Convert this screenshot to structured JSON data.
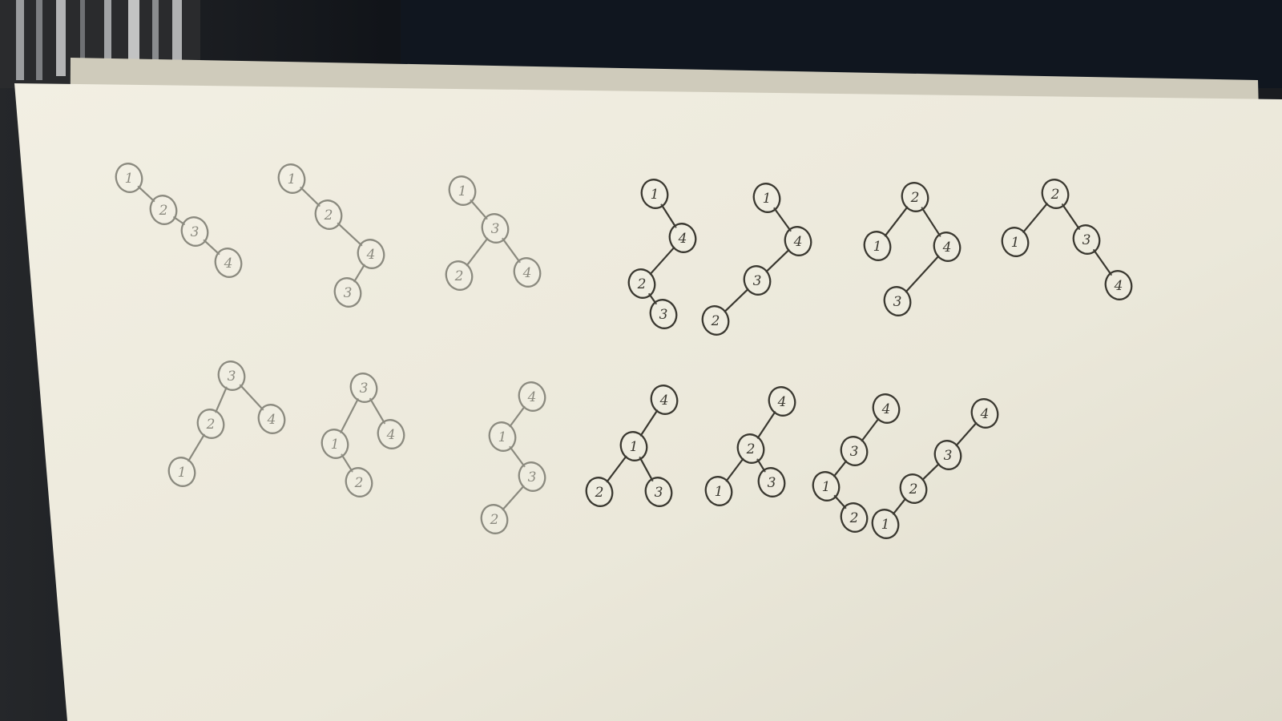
{
  "colors": {
    "background": "#14171c",
    "paper": "#eeeadc",
    "paper_shadow": "#c9c6b6",
    "pencil_light": "#8b8a7f",
    "pencil_dark": "#3a3830"
  },
  "trees": [
    {
      "id": "t1",
      "shade": "light",
      "nodes": [
        [
          "a",
          "1"
        ],
        [
          "b",
          "2"
        ],
        [
          "c",
          "3"
        ],
        [
          "d",
          "4"
        ]
      ],
      "edges": [
        [
          "a",
          "b"
        ],
        [
          "b",
          "c"
        ],
        [
          "c",
          "d"
        ]
      ]
    },
    {
      "id": "t2",
      "shade": "light",
      "nodes": [
        [
          "a",
          "1"
        ],
        [
          "b",
          "2"
        ],
        [
          "c",
          "4"
        ],
        [
          "d",
          "3"
        ]
      ],
      "edges": [
        [
          "a",
          "b"
        ],
        [
          "b",
          "c"
        ],
        [
          "c",
          "d"
        ]
      ]
    },
    {
      "id": "t3",
      "shade": "light",
      "nodes": [
        [
          "a",
          "1"
        ],
        [
          "b",
          "3"
        ],
        [
          "c",
          "2"
        ],
        [
          "d",
          "4"
        ]
      ],
      "edges": [
        [
          "a",
          "b"
        ],
        [
          "b",
          "c"
        ],
        [
          "b",
          "d"
        ]
      ]
    },
    {
      "id": "t4",
      "shade": "dark",
      "nodes": [
        [
          "a",
          "1"
        ],
        [
          "b",
          "4"
        ],
        [
          "c",
          "2"
        ],
        [
          "d",
          "3"
        ]
      ],
      "edges": [
        [
          "a",
          "b"
        ],
        [
          "b",
          "c"
        ],
        [
          "c",
          "d"
        ]
      ]
    },
    {
      "id": "t5",
      "shade": "dark",
      "nodes": [
        [
          "a",
          "1"
        ],
        [
          "b",
          "4"
        ],
        [
          "c",
          "3"
        ],
        [
          "d",
          "2"
        ]
      ],
      "edges": [
        [
          "a",
          "b"
        ],
        [
          "b",
          "c"
        ],
        [
          "c",
          "d"
        ]
      ]
    },
    {
      "id": "t6",
      "shade": "dark",
      "nodes": [
        [
          "a",
          "2"
        ],
        [
          "b",
          "1"
        ],
        [
          "c",
          "4"
        ],
        [
          "d",
          "3"
        ]
      ],
      "edges": [
        [
          "a",
          "b"
        ],
        [
          "a",
          "c"
        ],
        [
          "c",
          "d"
        ]
      ]
    },
    {
      "id": "t7",
      "shade": "dark",
      "nodes": [
        [
          "a",
          "2"
        ],
        [
          "b",
          "1"
        ],
        [
          "c",
          "3"
        ],
        [
          "d",
          "4"
        ]
      ],
      "edges": [
        [
          "a",
          "b"
        ],
        [
          "a",
          "c"
        ],
        [
          "c",
          "d"
        ]
      ]
    },
    {
      "id": "t8",
      "shade": "light",
      "nodes": [
        [
          "a",
          "3"
        ],
        [
          "b",
          "2"
        ],
        [
          "c",
          "4"
        ],
        [
          "d",
          "1"
        ]
      ],
      "edges": [
        [
          "a",
          "b"
        ],
        [
          "a",
          "c"
        ],
        [
          "b",
          "d"
        ]
      ]
    },
    {
      "id": "t9",
      "shade": "light",
      "nodes": [
        [
          "a",
          "3"
        ],
        [
          "b",
          "1"
        ],
        [
          "c",
          "4"
        ],
        [
          "d",
          "2"
        ]
      ],
      "edges": [
        [
          "a",
          "b"
        ],
        [
          "a",
          "c"
        ],
        [
          "b",
          "d"
        ]
      ]
    },
    {
      "id": "t10",
      "shade": "light",
      "nodes": [
        [
          "a",
          "4"
        ],
        [
          "b",
          "1"
        ],
        [
          "c",
          "3"
        ],
        [
          "d",
          "2"
        ]
      ],
      "edges": [
        [
          "a",
          "b"
        ],
        [
          "b",
          "c"
        ],
        [
          "c",
          "d"
        ]
      ]
    },
    {
      "id": "t11",
      "shade": "dark",
      "nodes": [
        [
          "a",
          "4"
        ],
        [
          "b",
          "1"
        ],
        [
          "c",
          "2"
        ],
        [
          "d",
          "3"
        ]
      ],
      "edges": [
        [
          "a",
          "b"
        ],
        [
          "b",
          "c"
        ],
        [
          "b",
          "d"
        ]
      ]
    },
    {
      "id": "t12",
      "shade": "dark",
      "nodes": [
        [
          "a",
          "4"
        ],
        [
          "b",
          "2"
        ],
        [
          "c",
          "1"
        ],
        [
          "d",
          "3"
        ]
      ],
      "edges": [
        [
          "a",
          "b"
        ],
        [
          "b",
          "c"
        ],
        [
          "b",
          "d"
        ]
      ]
    },
    {
      "id": "t13",
      "shade": "dark",
      "nodes": [
        [
          "a",
          "4"
        ],
        [
          "b",
          "3"
        ],
        [
          "c",
          "1"
        ],
        [
          "d",
          "2"
        ]
      ],
      "edges": [
        [
          "a",
          "b"
        ],
        [
          "b",
          "c"
        ],
        [
          "c",
          "d"
        ]
      ]
    },
    {
      "id": "t14",
      "shade": "dark",
      "nodes": [
        [
          "a",
          "4"
        ],
        [
          "b",
          "3"
        ],
        [
          "c",
          "2"
        ],
        [
          "d",
          "1"
        ]
      ],
      "edges": [
        [
          "a",
          "b"
        ],
        [
          "b",
          "c"
        ],
        [
          "c",
          "d"
        ]
      ]
    }
  ]
}
